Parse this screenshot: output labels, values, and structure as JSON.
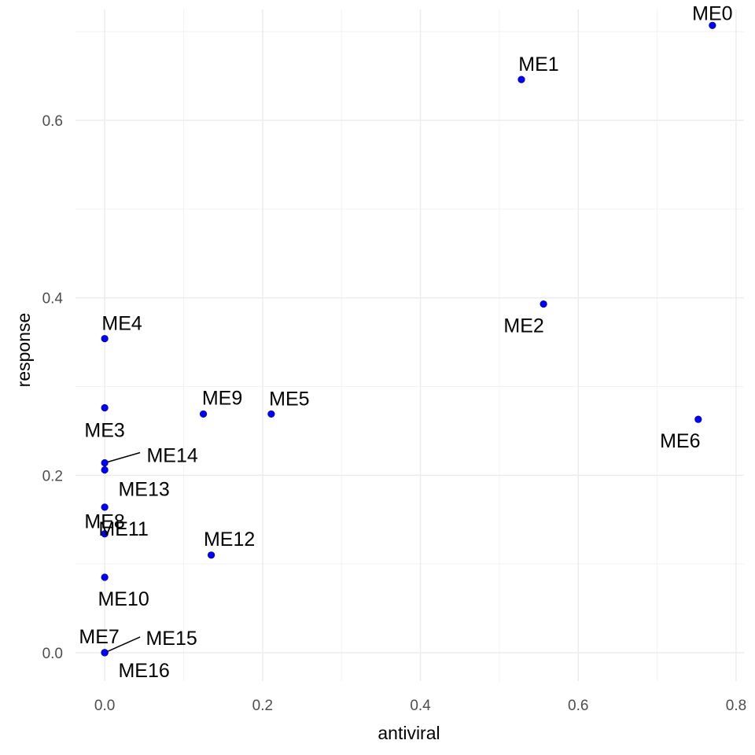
{
  "chart_data": {
    "type": "scatter",
    "xlabel": "antiviral",
    "ylabel": "response",
    "xlim": [
      -0.037,
      0.81
    ],
    "ylim": [
      -0.032,
      0.725
    ],
    "x_ticks": [
      0.0,
      0.2,
      0.4,
      0.6,
      0.8
    ],
    "x_tick_labels": [
      "0.0",
      "0.2",
      "0.4",
      "0.6",
      "0.8"
    ],
    "y_ticks": [
      0.0,
      0.2,
      0.4,
      0.6
    ],
    "y_tick_labels": [
      "0.0",
      "0.2",
      "0.4",
      "0.6"
    ],
    "x_minor_ticks": [
      0.1,
      0.3,
      0.5,
      0.7
    ],
    "y_minor_ticks": [
      0.1,
      0.3,
      0.5,
      0.7
    ],
    "grid": true,
    "point_color": "#0000ff",
    "points": [
      {
        "label": "ME0",
        "x": 0.77,
        "y": 0.707
      },
      {
        "label": "ME1",
        "x": 0.528,
        "y": 0.646
      },
      {
        "label": "ME2",
        "x": 0.556,
        "y": 0.393
      },
      {
        "label": "ME3",
        "x": 0.0,
        "y": 0.276
      },
      {
        "label": "ME4",
        "x": 0.0,
        "y": 0.354
      },
      {
        "label": "ME5",
        "x": 0.211,
        "y": 0.269
      },
      {
        "label": "ME6",
        "x": 0.752,
        "y": 0.263
      },
      {
        "label": "ME7",
        "x": 0.0,
        "y": 0.0
      },
      {
        "label": "ME8",
        "x": 0.0,
        "y": 0.134
      },
      {
        "label": "ME9",
        "x": 0.125,
        "y": 0.269
      },
      {
        "label": "ME10",
        "x": 0.0,
        "y": 0.085
      },
      {
        "label": "ME11",
        "x": 0.0,
        "y": 0.164
      },
      {
        "label": "ME12",
        "x": 0.135,
        "y": 0.11
      },
      {
        "label": "ME13",
        "x": 0.0,
        "y": 0.206
      },
      {
        "label": "ME14",
        "x": 0.0,
        "y": 0.214
      },
      {
        "label": "ME15",
        "x": 0.0,
        "y": 0.0
      },
      {
        "label": "ME16",
        "x": 0.0,
        "y": 0.0
      }
    ]
  }
}
